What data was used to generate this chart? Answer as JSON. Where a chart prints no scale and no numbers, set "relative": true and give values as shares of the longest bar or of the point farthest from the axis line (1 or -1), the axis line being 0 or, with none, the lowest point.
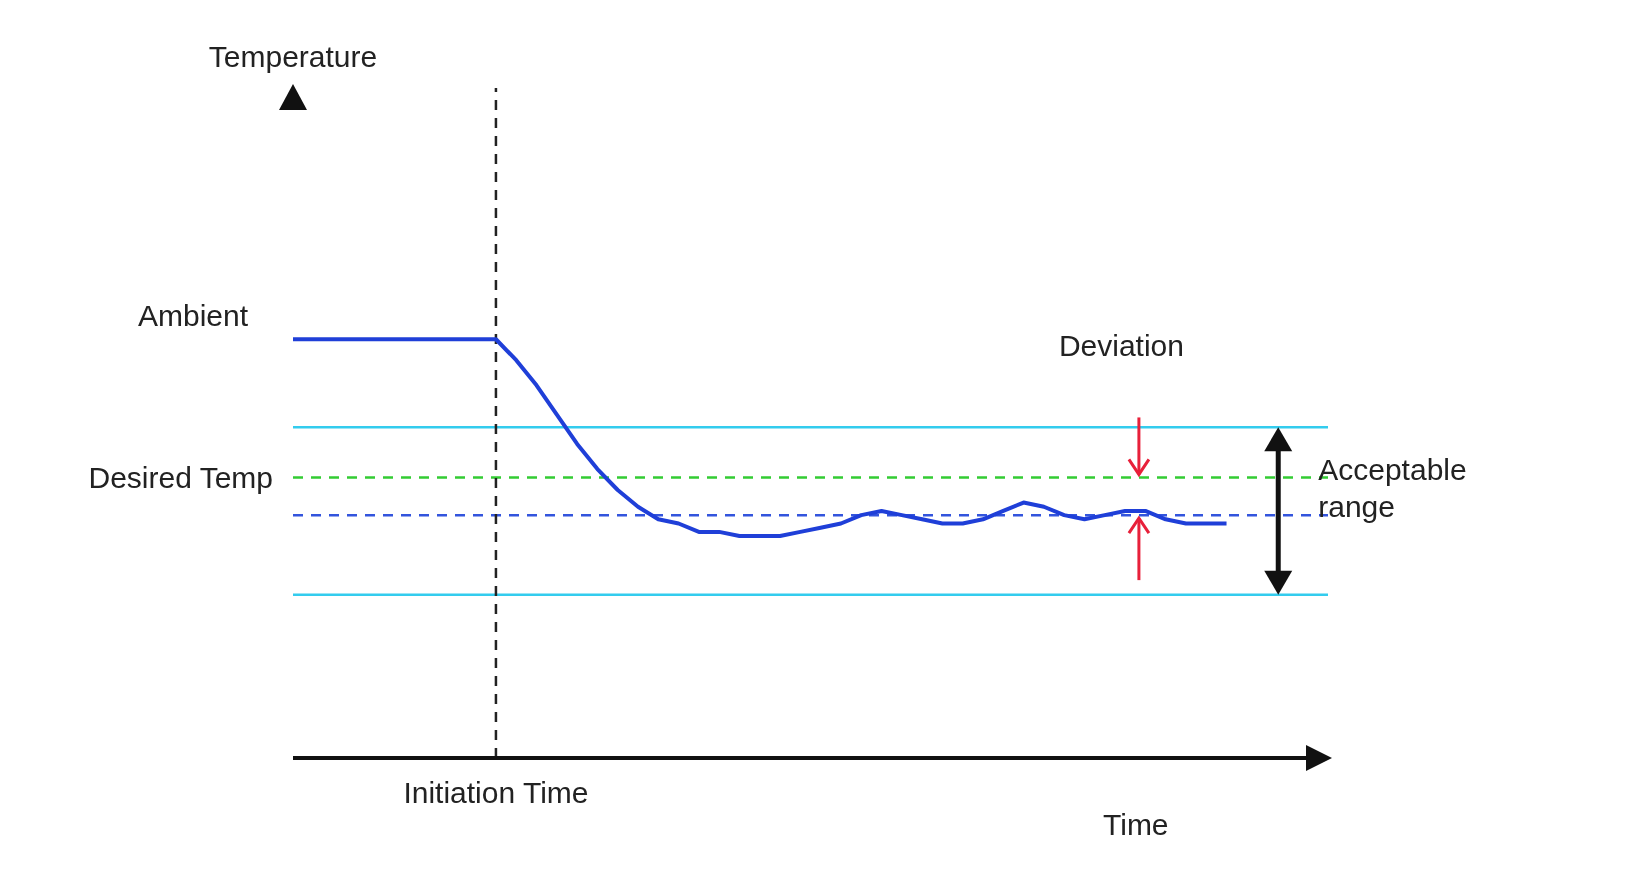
{
  "chart_data": {
    "type": "line",
    "relative": true,
    "xlabel": "Time",
    "categories": [
      null,
      null,
      null,
      null,
      null,
      null,
      null,
      null,
      null,
      null,
      null,
      null,
      null,
      null,
      null,
      null,
      null,
      null,
      null,
      null,
      null,
      null,
      null,
      null,
      null,
      null,
      null,
      null,
      null,
      null,
      null,
      null,
      null,
      null,
      null,
      null,
      null,
      null,
      null,
      null,
      null,
      null,
      null,
      null,
      null,
      null,
      null,
      null,
      null,
      null,
      null,
      null
    ],
    "series": [
      {
        "color": "#1f3fd8",
        "values": [
          1,
          1,
          1,
          1,
          1,
          1,
          1,
          1,
          1,
          1,
          1,
          0.95,
          0.89,
          0.82,
          0.75,
          0.69,
          0.64,
          0.6,
          0.57,
          0.56,
          0.54,
          0.54,
          0.53,
          0.53,
          0.53,
          0.54,
          0.55,
          0.56,
          0.58,
          0.59,
          0.58,
          0.57,
          0.56,
          0.56,
          0.57,
          0.59,
          0.61,
          0.6,
          0.58,
          0.57,
          0.58,
          0.59,
          0.59,
          0.57,
          0.56,
          0.56,
          0.56,
          null,
          null,
          null,
          null,
          null
        ]
      }
    ],
    "ref_lines": [
      {
        "axis": "y",
        "value": 0.79,
        "color": "#33ccee",
        "line_style": "solid"
      },
      {
        "axis": "y",
        "value": 0.39,
        "color": "#33ccee",
        "line_style": "solid"
      },
      {
        "axis": "y",
        "value": 0.67,
        "label": "Desired Temp",
        "color": "#33cc33",
        "line_style": "dashed"
      },
      {
        "axis": "y",
        "value": 0.58,
        "color": "#3355dd",
        "line_style": "dashed"
      },
      {
        "axis": "x",
        "label": "Initiation Time",
        "color": "#222222",
        "line_style": "dashed"
      }
    ],
    "annotations": [
      "Temperature",
      "Ambient",
      "Deviation",
      "Acceptable range"
    ],
    "legend": false,
    "grid": false,
    "marker": "none",
    "line_style": "solid"
  }
}
